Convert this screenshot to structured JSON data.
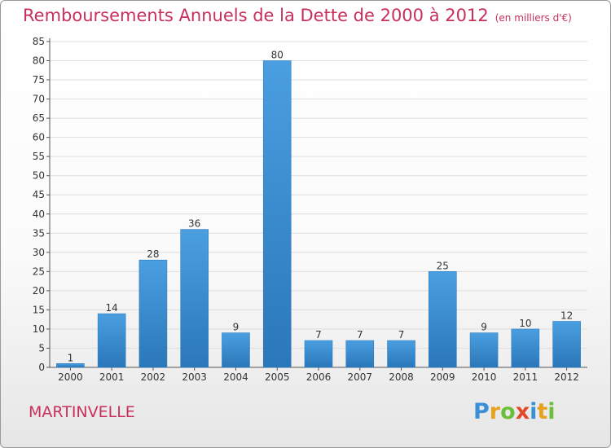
{
  "header": {
    "title": "Remboursements Annuels de la Dette de 2000 à 2012",
    "unit": "(en milliers d'€)"
  },
  "footer": {
    "commune": "MARTINVELLE",
    "logo_letters": [
      "P",
      "r",
      "o",
      "x",
      "i",
      "t",
      "i"
    ],
    "logo_colors": [
      "#3a8fd6",
      "#e8a020",
      "#6cbf3a",
      "#e04a2a",
      "#3a8fd6",
      "#e8a020",
      "#6cbf3a"
    ]
  },
  "chart_data": {
    "type": "bar",
    "categories": [
      "2000",
      "2001",
      "2002",
      "2003",
      "2004",
      "2005",
      "2006",
      "2007",
      "2008",
      "2009",
      "2010",
      "2011",
      "2012"
    ],
    "values": [
      1,
      14,
      28,
      36,
      9,
      80,
      7,
      7,
      7,
      25,
      9,
      10,
      12
    ],
    "data_labels": [
      "1",
      "14",
      "28",
      "36",
      "9",
      "80",
      "7",
      "7",
      "7",
      "25",
      "9",
      "10",
      "12"
    ],
    "title": "Remboursements Annuels de la Dette de 2000 à 2012",
    "xlabel": "",
    "ylabel": "",
    "ylim": [
      0,
      85
    ],
    "yticks": [
      0,
      5,
      10,
      15,
      20,
      25,
      30,
      35,
      40,
      45,
      50,
      55,
      60,
      65,
      70,
      75,
      80,
      85
    ],
    "grid": true,
    "bar_color": "#4a9fe0",
    "bar_color_dark": "#2a77b9"
  }
}
